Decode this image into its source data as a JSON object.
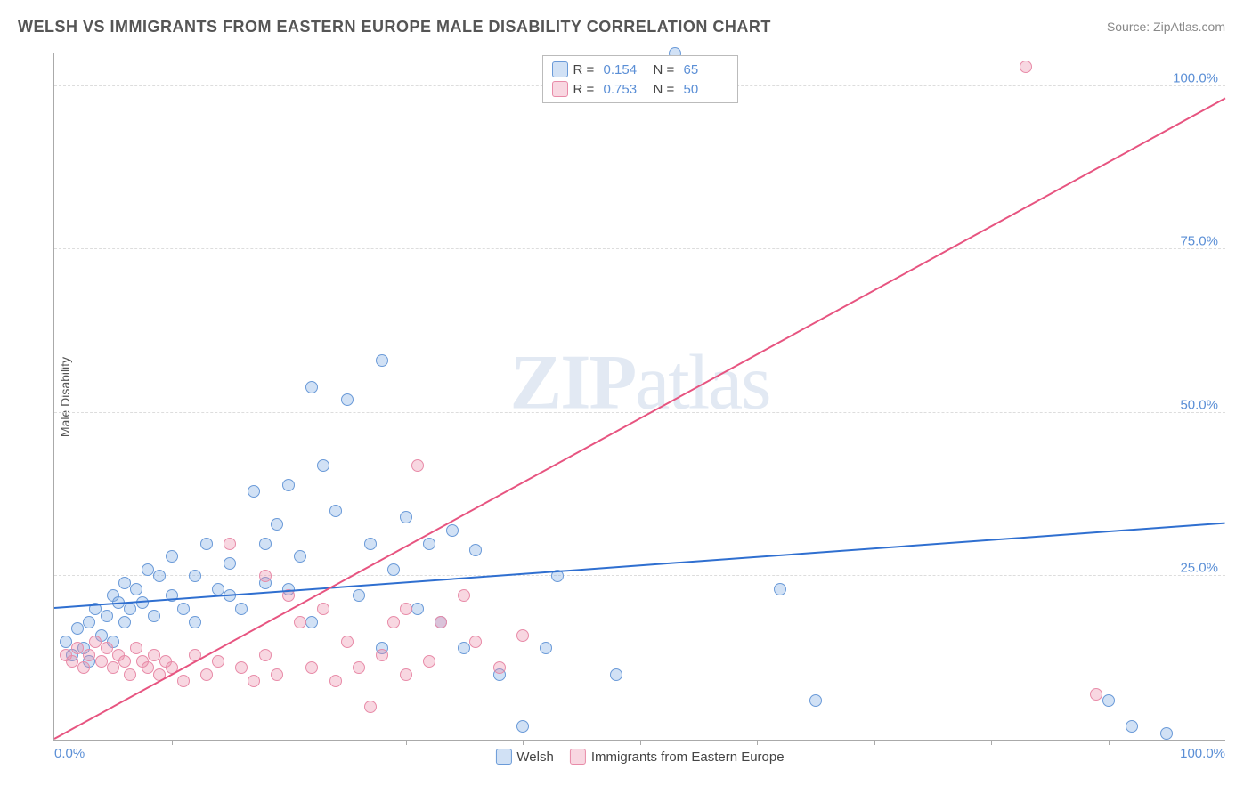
{
  "title": "WELSH VS IMMIGRANTS FROM EASTERN EUROPE MALE DISABILITY CORRELATION CHART",
  "source_label": "Source:",
  "source_name": "ZipAtlas.com",
  "ylabel": "Male Disability",
  "watermark": {
    "part1": "ZIP",
    "part2": "atlas"
  },
  "chart": {
    "type": "scatter",
    "background_color": "#ffffff",
    "grid_color": "#dddddd",
    "axis_color": "#aaaaaa",
    "xlim": [
      0,
      100
    ],
    "ylim": [
      0,
      105
    ],
    "xticks": [
      0,
      10,
      20,
      30,
      40,
      50,
      60,
      70,
      80,
      90,
      100
    ],
    "yticks": [
      25,
      50,
      75,
      100
    ],
    "ytick_labels": [
      "25.0%",
      "50.0%",
      "75.0%",
      "100.0%"
    ],
    "xtick_labels_ends": [
      "0.0%",
      "100.0%"
    ],
    "tick_label_color": "#5b8fd6",
    "tick_label_fontsize": 15,
    "marker_radius": 7,
    "series": [
      {
        "name": "Welsh",
        "color_fill": "rgba(122,169,225,0.35)",
        "color_stroke": "#6a9ad8",
        "R": "0.154",
        "N": "65",
        "trend": {
          "x1": 0,
          "y1": 20,
          "x2": 100,
          "y2": 33,
          "color": "#2f6fd0",
          "width": 2
        },
        "points": [
          [
            1,
            15
          ],
          [
            1.5,
            13
          ],
          [
            2,
            17
          ],
          [
            2.5,
            14
          ],
          [
            3,
            18
          ],
          [
            3,
            12
          ],
          [
            3.5,
            20
          ],
          [
            4,
            16
          ],
          [
            4.5,
            19
          ],
          [
            5,
            22
          ],
          [
            5,
            15
          ],
          [
            5.5,
            21
          ],
          [
            6,
            18
          ],
          [
            6,
            24
          ],
          [
            6.5,
            20
          ],
          [
            7,
            23
          ],
          [
            7.5,
            21
          ],
          [
            8,
            26
          ],
          [
            8.5,
            19
          ],
          [
            9,
            25
          ],
          [
            10,
            22
          ],
          [
            10,
            28
          ],
          [
            11,
            20
          ],
          [
            12,
            25
          ],
          [
            12,
            18
          ],
          [
            13,
            30
          ],
          [
            14,
            23
          ],
          [
            15,
            27
          ],
          [
            15,
            22
          ],
          [
            16,
            20
          ],
          [
            17,
            38
          ],
          [
            18,
            24
          ],
          [
            18,
            30
          ],
          [
            19,
            33
          ],
          [
            20,
            39
          ],
          [
            20,
            23
          ],
          [
            21,
            28
          ],
          [
            22,
            54
          ],
          [
            22,
            18
          ],
          [
            23,
            42
          ],
          [
            24,
            35
          ],
          [
            25,
            52
          ],
          [
            26,
            22
          ],
          [
            27,
            30
          ],
          [
            28,
            58
          ],
          [
            28,
            14
          ],
          [
            29,
            26
          ],
          [
            30,
            34
          ],
          [
            31,
            20
          ],
          [
            32,
            30
          ],
          [
            33,
            18
          ],
          [
            34,
            32
          ],
          [
            35,
            14
          ],
          [
            36,
            29
          ],
          [
            38,
            10
          ],
          [
            40,
            2
          ],
          [
            42,
            14
          ],
          [
            43,
            25
          ],
          [
            48,
            10
          ],
          [
            53,
            105
          ],
          [
            62,
            23
          ],
          [
            65,
            6
          ],
          [
            90,
            6
          ],
          [
            92,
            2
          ],
          [
            95,
            1
          ]
        ]
      },
      {
        "name": "Immigrants from Eastern Europe",
        "color_fill": "rgba(236,140,170,0.35)",
        "color_stroke": "#e88ba8",
        "R": "0.753",
        "N": "50",
        "trend": {
          "x1": 0,
          "y1": 0,
          "x2": 100,
          "y2": 98,
          "color": "#e75480",
          "width": 2
        },
        "points": [
          [
            1,
            13
          ],
          [
            1.5,
            12
          ],
          [
            2,
            14
          ],
          [
            2.5,
            11
          ],
          [
            3,
            13
          ],
          [
            3.5,
            15
          ],
          [
            4,
            12
          ],
          [
            4.5,
            14
          ],
          [
            5,
            11
          ],
          [
            5.5,
            13
          ],
          [
            6,
            12
          ],
          [
            6.5,
            10
          ],
          [
            7,
            14
          ],
          [
            7.5,
            12
          ],
          [
            8,
            11
          ],
          [
            8.5,
            13
          ],
          [
            9,
            10
          ],
          [
            9.5,
            12
          ],
          [
            10,
            11
          ],
          [
            11,
            9
          ],
          [
            12,
            13
          ],
          [
            13,
            10
          ],
          [
            14,
            12
          ],
          [
            15,
            30
          ],
          [
            16,
            11
          ],
          [
            17,
            9
          ],
          [
            18,
            25
          ],
          [
            18,
            13
          ],
          [
            19,
            10
          ],
          [
            20,
            22
          ],
          [
            21,
            18
          ],
          [
            22,
            11
          ],
          [
            23,
            20
          ],
          [
            24,
            9
          ],
          [
            25,
            15
          ],
          [
            26,
            11
          ],
          [
            28,
            13
          ],
          [
            29,
            18
          ],
          [
            30,
            10
          ],
          [
            30,
            20
          ],
          [
            31,
            42
          ],
          [
            32,
            12
          ],
          [
            33,
            18
          ],
          [
            35,
            22
          ],
          [
            36,
            15
          ],
          [
            38,
            11
          ],
          [
            40,
            16
          ],
          [
            27,
            5
          ],
          [
            83,
            103
          ],
          [
            89,
            7
          ]
        ]
      }
    ]
  },
  "legend": {
    "stat_labels": {
      "R": "R =",
      "N": "N ="
    }
  }
}
